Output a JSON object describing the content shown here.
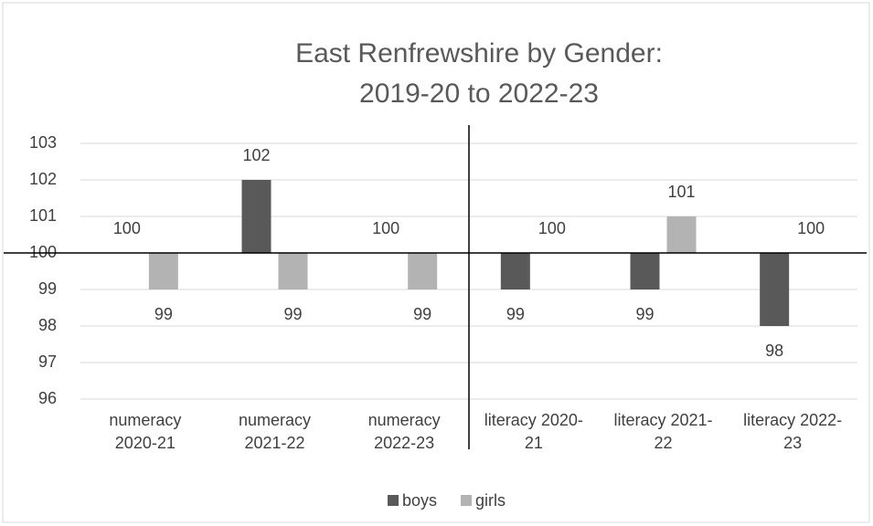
{
  "chart_data": {
    "type": "bar",
    "title": "East Renfrewshire by Gender:",
    "subtitle": "2019-20 to 2022-23",
    "categories": [
      "numeracy 2020-21",
      "numeracy 2021-22",
      "numeracy 2022-23",
      "literacy 2020-21",
      "literacy 2021-22",
      "literacy 2022-23"
    ],
    "series": [
      {
        "name": "boys",
        "color": "#595959",
        "values": [
          100,
          102,
          100,
          99,
          99,
          98
        ]
      },
      {
        "name": "girls",
        "color": "#b3b3b3",
        "values": [
          99,
          99,
          99,
          100,
          101,
          100
        ]
      }
    ],
    "ylim": [
      96,
      103
    ],
    "yticks": [
      96,
      97,
      98,
      99,
      100,
      101,
      102,
      103
    ],
    "y_cross": 100,
    "grid": true,
    "legend": "bottom"
  }
}
